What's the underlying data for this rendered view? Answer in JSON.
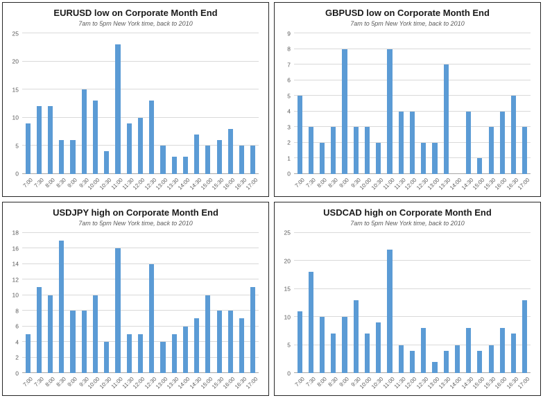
{
  "style": {
    "bar_color": "#5B9BD5",
    "grid_color": "#d9d9d9",
    "baseline_color": "#a6a6a6",
    "tick_text_color": "#595959",
    "title_color": "#1a1a1a"
  },
  "chart_data": [
    {
      "type": "bar",
      "title": "EURUSD low on Corporate Month End",
      "subtitle": "7am to 5pm New York time, back to 2010",
      "categories": [
        "7:00",
        "7:30",
        "8:00",
        "8:30",
        "9:00",
        "9:30",
        "10:00",
        "10:30",
        "11:00",
        "11:30",
        "12:00",
        "12:30",
        "13:00",
        "13:30",
        "14:00",
        "14:30",
        "15:00",
        "15:30",
        "16:00",
        "16:30",
        "17:00"
      ],
      "values": [
        9,
        12,
        12,
        6,
        6,
        15,
        13,
        4,
        23,
        9,
        10,
        13,
        5,
        3,
        3,
        7,
        5,
        6,
        8,
        5,
        5
      ],
      "xlabel": "",
      "ylabel": "",
      "ylim": [
        0,
        25
      ],
      "ytick_step": 5,
      "grid": true,
      "legend": "none"
    },
    {
      "type": "bar",
      "title": "GBPUSD low on Corporate Month End",
      "subtitle": "7am to 5pm New York time, back to 2010",
      "categories": [
        "7:00",
        "7:30",
        "8:00",
        "8:30",
        "9:00",
        "9:30",
        "10:00",
        "10:30",
        "11:00",
        "11:30",
        "12:00",
        "12:30",
        "13:00",
        "13:30",
        "14:00",
        "14:30",
        "15:00",
        "15:30",
        "16:00",
        "16:30",
        "17:00"
      ],
      "values": [
        5,
        3,
        2,
        3,
        8,
        3,
        3,
        2,
        8,
        4,
        4,
        2,
        2,
        7,
        0,
        4,
        1,
        3,
        4,
        5,
        3
      ],
      "xlabel": "",
      "ylabel": "",
      "ylim": [
        0,
        9
      ],
      "ytick_step": 1,
      "grid": true,
      "legend": "none"
    },
    {
      "type": "bar",
      "title": "USDJPY high on Corporate Month End",
      "subtitle": "7am to 5pm New York time, back to 2010",
      "categories": [
        "7:00",
        "7:30",
        "8:00",
        "8:30",
        "9:00",
        "9:30",
        "10:00",
        "10:30",
        "11:00",
        "11:30",
        "12:00",
        "12:30",
        "13:00",
        "13:30",
        "14:00",
        "14:30",
        "15:00",
        "15:30",
        "16:00",
        "16:30",
        "17:00"
      ],
      "values": [
        5,
        11,
        10,
        17,
        8,
        8,
        10,
        4,
        16,
        5,
        5,
        14,
        4,
        5,
        6,
        7,
        10,
        8,
        8,
        7,
        11
      ],
      "xlabel": "",
      "ylabel": "",
      "ylim": [
        0,
        18
      ],
      "ytick_step": 2,
      "grid": true,
      "legend": "none"
    },
    {
      "type": "bar",
      "title": "USDCAD high on Corporate Month End",
      "subtitle": "7am to 5pm New York time, back to 2010",
      "categories": [
        "7:00",
        "7:30",
        "8:00",
        "8:30",
        "9:00",
        "9:30",
        "10:00",
        "10:30",
        "11:00",
        "11:30",
        "12:00",
        "12:30",
        "13:00",
        "13:30",
        "14:00",
        "14:30",
        "15:00",
        "15:30",
        "16:00",
        "16:30",
        "17:00"
      ],
      "values": [
        11,
        18,
        10,
        7,
        10,
        13,
        7,
        9,
        22,
        5,
        4,
        8,
        2,
        4,
        5,
        8,
        4,
        5,
        8,
        7,
        13
      ],
      "xlabel": "",
      "ylabel": "",
      "ylim": [
        0,
        25
      ],
      "ytick_step": 5,
      "grid": true,
      "legend": "none"
    }
  ]
}
